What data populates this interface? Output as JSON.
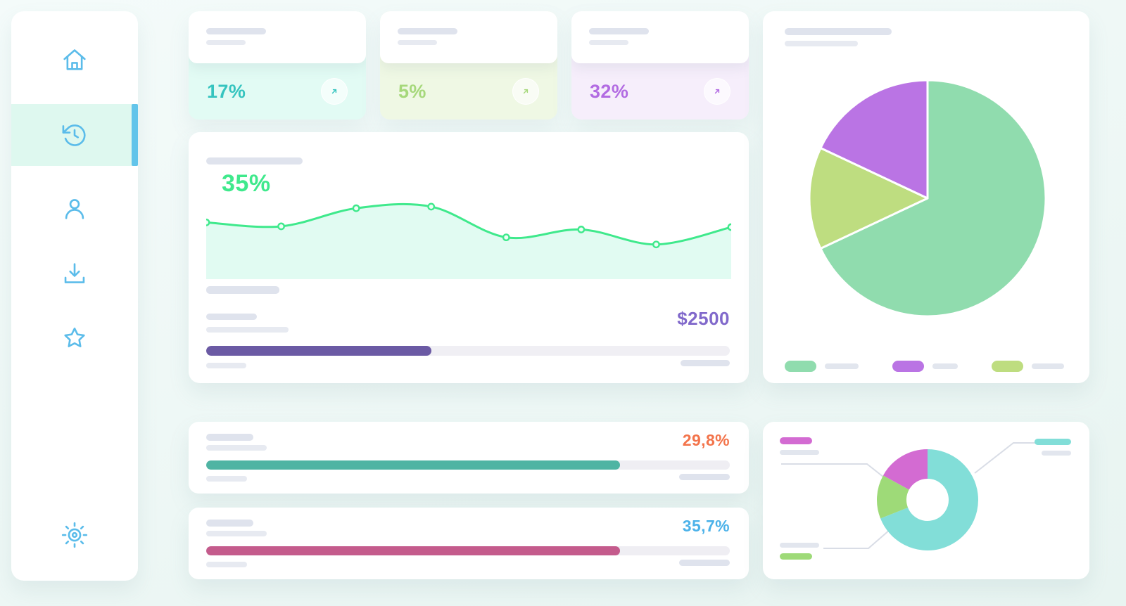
{
  "theme": {
    "background_top": "#f4fbfa",
    "background_bottom": "#e8f4f1",
    "card_bg": "#ffffff",
    "placeholder_color": "#dfe3ed",
    "sidebar_icon_color": "#5bbcea",
    "active_item_bg": "#def8ef",
    "active_item_bar": "#62c4ea"
  },
  "sidebar": {
    "items": [
      {
        "name": "home",
        "icon": "home-icon",
        "active": false
      },
      {
        "name": "history",
        "icon": "history-icon",
        "active": true
      },
      {
        "name": "profile",
        "icon": "user-icon",
        "active": false
      },
      {
        "name": "downloads",
        "icon": "download-icon",
        "active": false
      },
      {
        "name": "favorites",
        "icon": "star-icon",
        "active": false
      },
      {
        "name": "settings",
        "icon": "settings-icon",
        "active": false
      }
    ]
  },
  "stat_cards": [
    {
      "value": "17%",
      "accent": "#35c4bf",
      "bg": "#e2fbf4",
      "trend_icon": "arrow-up-right-icon"
    },
    {
      "value": "5%",
      "accent": "#a6d87b",
      "bg": "#eff8e4",
      "trend_icon": "arrow-up-right-icon"
    },
    {
      "value": "32%",
      "accent": "#b26be2",
      "bg": "#f6eefb",
      "trend_icon": "arrow-up-right-icon"
    }
  ],
  "main_chart": {
    "headline": "35%",
    "headline_color": "#3fe98c",
    "amount": "$2500",
    "amount_color": "#8169cb",
    "progress": {
      "pct": 43,
      "color": "#6b5aa4",
      "track": "#f0eff4"
    },
    "chart_data": {
      "type": "area",
      "x": [
        0,
        1,
        2,
        3,
        4,
        5,
        6,
        7
      ],
      "values": [
        72,
        67,
        90,
        92,
        53,
        63,
        44,
        66
      ],
      "ylim": [
        0,
        100
      ],
      "line_color": "#3fe98c",
      "fill_color": "#e1fbf2",
      "grid": false,
      "legend": false
    }
  },
  "pie_card": {
    "chart_data": {
      "type": "pie",
      "slices": [
        {
          "label": "segment-green",
          "value": 68,
          "color": "#90dcae"
        },
        {
          "label": "segment-olive",
          "value": 14,
          "color": "#bedd80"
        },
        {
          "label": "segment-purple",
          "value": 18,
          "color": "#ba74e4"
        }
      ],
      "legend": "bottom"
    },
    "legend": [
      {
        "color": "#90dcae"
      },
      {
        "color": "#ba74e4"
      },
      {
        "color": "#bedd80"
      }
    ]
  },
  "progress_cards": [
    {
      "value": "29,8%",
      "accent": "#f3744b",
      "bar_color": "#4fb4a3",
      "pct": 79,
      "track": "#efeef3"
    },
    {
      "value": "35,7%",
      "accent": "#4cb2e9",
      "bar_color": "#c45b8c",
      "pct": 79,
      "track": "#efeef3"
    }
  ],
  "donut_card": {
    "chart_data": {
      "type": "pie",
      "donut": true,
      "slices": [
        {
          "label": "segment-teal",
          "value": 69,
          "color": "#82ded8"
        },
        {
          "label": "segment-green",
          "value": 14,
          "color": "#9eda78"
        },
        {
          "label": "segment-magenta",
          "value": 17,
          "color": "#d36bd2"
        }
      ]
    },
    "legend": [
      {
        "color": "#d36bd2",
        "position": "top-left"
      },
      {
        "color": "#82ded8",
        "position": "top-right"
      },
      {
        "color": "#9eda78",
        "position": "bottom-left"
      }
    ]
  }
}
